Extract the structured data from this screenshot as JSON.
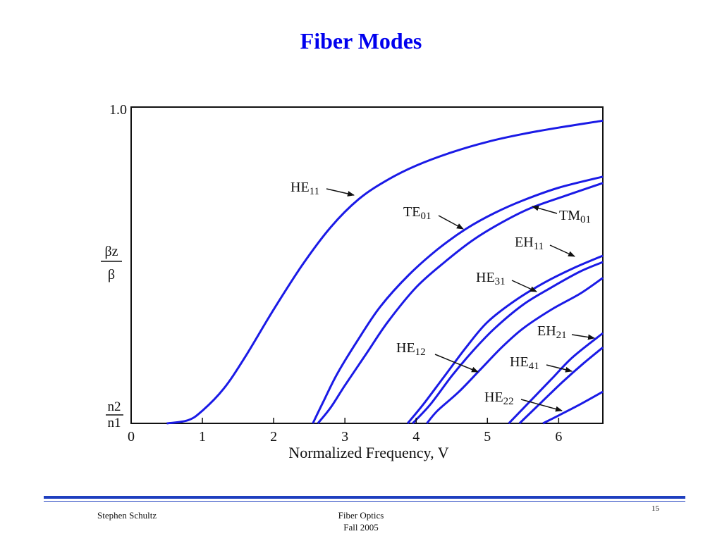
{
  "slide": {
    "title": "Fiber Modes",
    "author": "Stephen Schultz",
    "course": "Fiber Optics",
    "term": "Fall 2005",
    "page_number": "15",
    "accent_color": "#0000ee",
    "rule_color": "#1f3fbf"
  },
  "chart_data": {
    "type": "line",
    "xlabel": "Normalized Frequency, V",
    "ylabel_numerator": "βz",
    "ylabel_denominator": "β",
    "y_top_label": "1.0",
    "y_bottom_label_numerator": "n2",
    "y_bottom_label_denominator": "n1",
    "xlim": [
      0,
      6.62
    ],
    "ylim": [
      0,
      1
    ],
    "x_ticks": [
      0,
      1,
      2,
      3,
      4,
      5,
      6
    ],
    "x_tick_labels": [
      "0",
      "1",
      "2",
      "3",
      "4",
      "5",
      "6"
    ],
    "grid": false,
    "line_color": "#1a1ae6",
    "series": [
      {
        "name": "HE11",
        "label_main": "HE",
        "label_sub": "11",
        "x": [
          0.5,
          0.8,
          1.0,
          1.3,
          1.6,
          2.0,
          2.4,
          2.8,
          3.2,
          3.6,
          4.0,
          4.5,
          5.0,
          5.5,
          6.0,
          6.62
        ],
        "y": [
          0,
          0.01,
          0.04,
          0.11,
          0.21,
          0.36,
          0.5,
          0.62,
          0.71,
          0.77,
          0.815,
          0.857,
          0.89,
          0.915,
          0.935,
          0.957
        ]
      },
      {
        "name": "TE01",
        "label_main": "TE",
        "label_sub": "01",
        "x": [
          2.55,
          2.7,
          2.9,
          3.2,
          3.5,
          3.9,
          4.3,
          4.7,
          5.1,
          5.5,
          6.0,
          6.62
        ],
        "y": [
          0,
          0.07,
          0.16,
          0.27,
          0.37,
          0.47,
          0.55,
          0.615,
          0.665,
          0.705,
          0.745,
          0.78
        ]
      },
      {
        "name": "TM01",
        "label_main": "TM",
        "label_sub": "01",
        "x": [
          2.62,
          2.8,
          3.0,
          3.3,
          3.6,
          4.0,
          4.4,
          4.8,
          5.2,
          5.6,
          6.1,
          6.62
        ],
        "y": [
          0,
          0.05,
          0.12,
          0.22,
          0.32,
          0.43,
          0.51,
          0.58,
          0.635,
          0.68,
          0.72,
          0.76
        ]
      },
      {
        "name": "EH11",
        "label_main": "EH",
        "label_sub": "11",
        "x": [
          3.88,
          4.1,
          4.4,
          4.7,
          5.0,
          5.4,
          5.8,
          6.2,
          6.62
        ],
        "y": [
          0,
          0.06,
          0.15,
          0.24,
          0.32,
          0.39,
          0.445,
          0.49,
          0.53
        ]
      },
      {
        "name": "HE31",
        "label_main": "HE",
        "label_sub": "31",
        "x": [
          3.95,
          4.2,
          4.5,
          4.8,
          5.1,
          5.5,
          5.9,
          6.3,
          6.62
        ],
        "y": [
          0,
          0.06,
          0.15,
          0.23,
          0.3,
          0.375,
          0.43,
          0.48,
          0.51
        ]
      },
      {
        "name": "HE12",
        "label_main": "HE",
        "label_sub": "12",
        "x": [
          4.15,
          4.3,
          4.6,
          4.9,
          5.2,
          5.5,
          5.9,
          6.3,
          6.62
        ],
        "y": [
          0,
          0.04,
          0.1,
          0.17,
          0.24,
          0.3,
          0.36,
          0.41,
          0.46
        ]
      },
      {
        "name": "EH21",
        "label_main": "EH",
        "label_sub": "21",
        "x": [
          5.3,
          5.6,
          5.9,
          6.2,
          6.62
        ],
        "y": [
          0,
          0.07,
          0.14,
          0.21,
          0.285
        ]
      },
      {
        "name": "HE41",
        "label_main": "HE",
        "label_sub": "41",
        "x": [
          5.45,
          5.75,
          6.05,
          6.35,
          6.62
        ],
        "y": [
          0,
          0.065,
          0.13,
          0.19,
          0.24
        ]
      },
      {
        "name": "HE22",
        "label_main": "HE",
        "label_sub": "22",
        "x": [
          5.78,
          6.0,
          6.3,
          6.62
        ],
        "y": [
          0,
          0.025,
          0.06,
          0.1
        ]
      }
    ]
  }
}
